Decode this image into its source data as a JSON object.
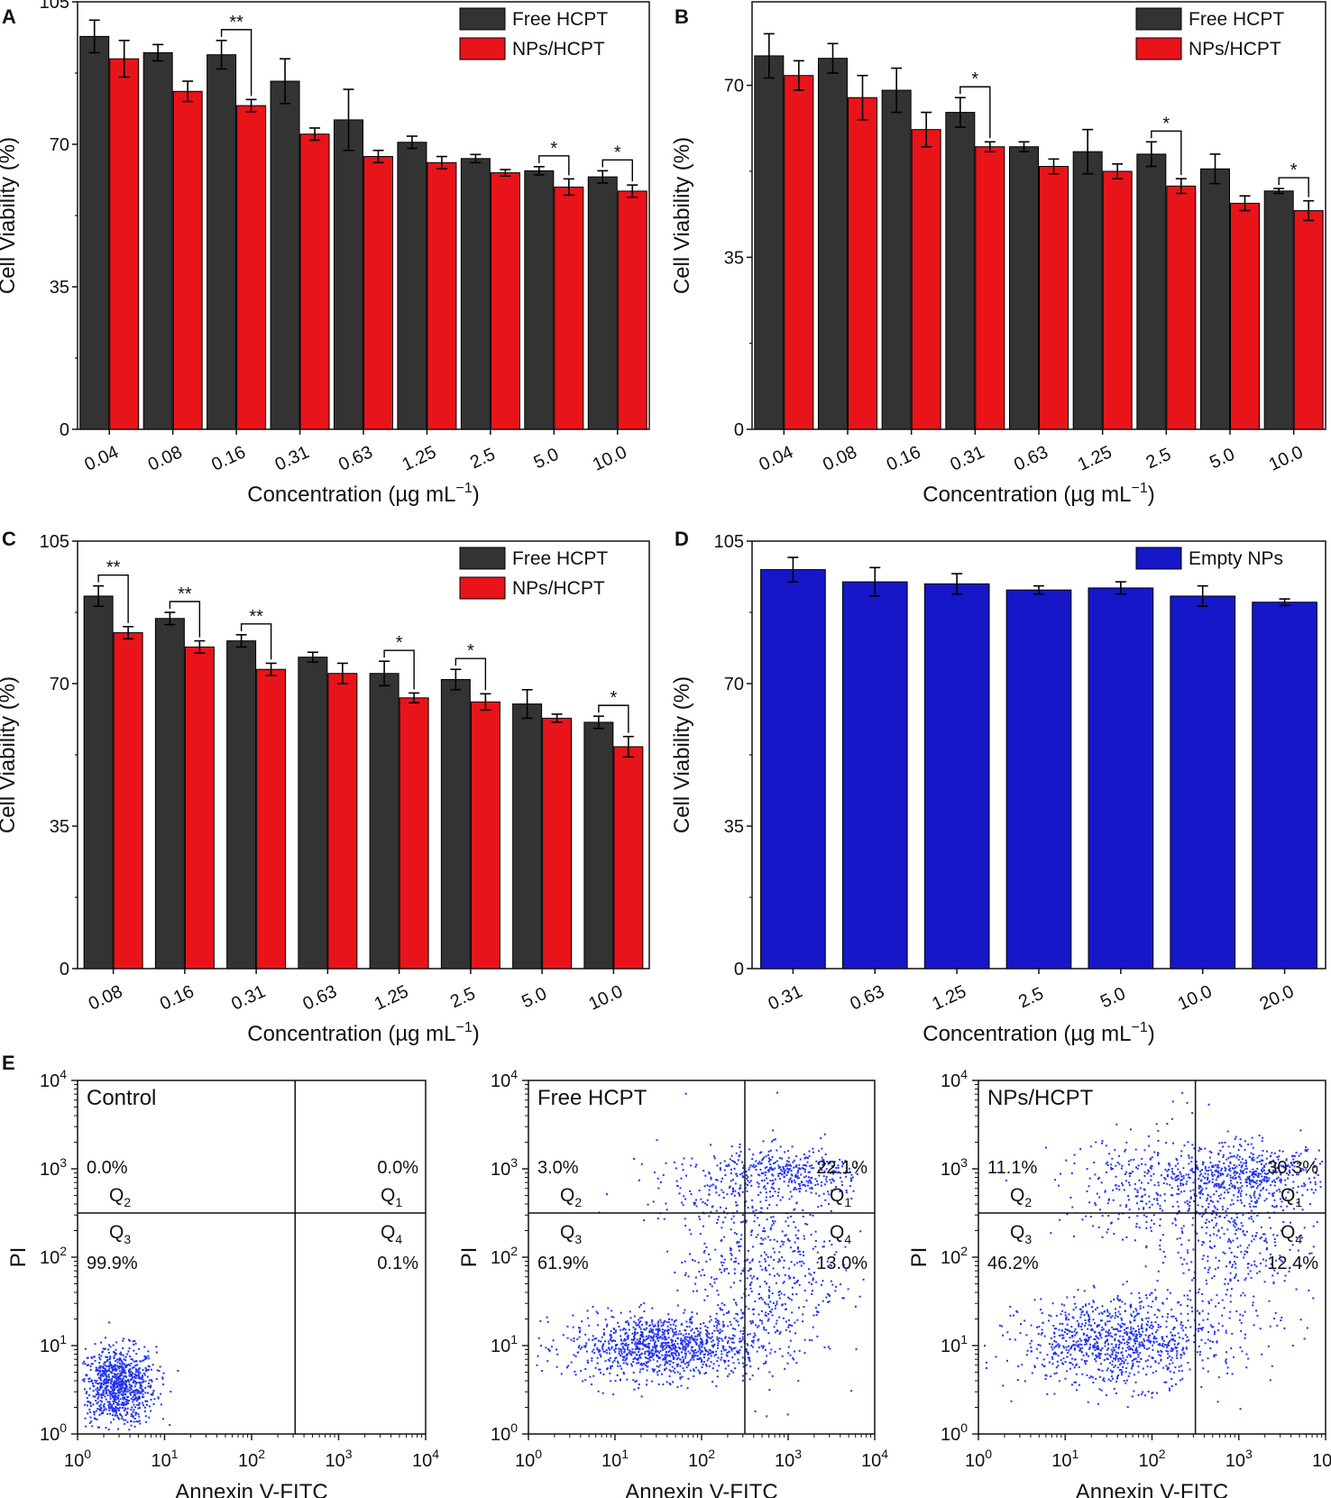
{
  "colors": {
    "free": "#333333",
    "nps": "#e8141a",
    "empty": "#1517c8",
    "dot": "#2233ee",
    "axis": "#111111"
  },
  "chart_data": [
    {
      "panel": "A",
      "type": "bar",
      "ylim": [
        0,
        105
      ],
      "yticks": [
        "0",
        "35",
        "70",
        "105"
      ],
      "ylabel": "Cell Viability (%)",
      "xlabel_main": "Concentration (µg mL",
      "xlabel_sup": "−1",
      "xlabel_end": ")",
      "categories": [
        "0.04",
        "0.08",
        "0.16",
        "0.31",
        "0.63",
        "1.25",
        "2.5",
        "5.0",
        "10.0"
      ],
      "series": [
        {
          "name": "Free HCPT",
          "color_key": "free",
          "values": [
            96.5,
            92.5,
            92.0,
            85.5,
            76.0,
            70.5,
            66.5,
            63.5,
            62.0
          ],
          "errors": [
            4.0,
            2.0,
            3.5,
            5.5,
            7.5,
            1.5,
            1.0,
            1.0,
            1.5
          ]
        },
        {
          "name": "NPs/HCPT",
          "color_key": "nps",
          "values": [
            91.0,
            83.0,
            79.5,
            72.5,
            67.0,
            65.5,
            63.0,
            59.5,
            58.5
          ],
          "errors": [
            4.5,
            2.5,
            1.5,
            1.5,
            1.5,
            1.5,
            0.8,
            2.0,
            1.5
          ]
        }
      ],
      "sig": [
        {
          "index": 2,
          "label": "**"
        },
        {
          "index": 7,
          "label": "*"
        },
        {
          "index": 8,
          "label": "*"
        }
      ]
    },
    {
      "panel": "B",
      "type": "bar",
      "ylim": [
        0,
        87
      ],
      "yticks": [
        "0",
        "35",
        "70"
      ],
      "ylabel": "Cell Viability (%)",
      "xlabel_main": "Concentration (µg mL",
      "xlabel_sup": "−1",
      "xlabel_end": ")",
      "categories": [
        "0.04",
        "0.08",
        "0.16",
        "0.31",
        "0.63",
        "1.25",
        "2.5",
        "5.0",
        "10.0"
      ],
      "series": [
        {
          "name": "Free HCPT",
          "color_key": "free",
          "values": [
            76.0,
            75.5,
            69.0,
            64.5,
            57.5,
            56.5,
            56.0,
            53.0,
            48.5
          ],
          "errors": [
            4.5,
            3.0,
            4.5,
            3.0,
            1.0,
            4.5,
            2.5,
            3.0,
            0.5
          ]
        },
        {
          "name": "NPs/HCPT",
          "color_key": "nps",
          "values": [
            72.0,
            67.5,
            61.0,
            57.5,
            53.5,
            52.5,
            49.5,
            46.0,
            44.5
          ],
          "errors": [
            3.0,
            4.5,
            3.5,
            1.0,
            1.5,
            1.5,
            1.5,
            1.5,
            2.0
          ]
        }
      ],
      "sig": [
        {
          "index": 3,
          "label": "*"
        },
        {
          "index": 6,
          "label": "*"
        },
        {
          "index": 8,
          "label": "*"
        }
      ]
    },
    {
      "panel": "C",
      "type": "bar",
      "ylim": [
        0,
        105
      ],
      "yticks": [
        "0",
        "35",
        "70",
        "105"
      ],
      "ylabel": "Cell Viability (%)",
      "xlabel_main": "Concentration (µg mL",
      "xlabel_sup": "−1",
      "xlabel_end": ")",
      "categories": [
        "0.08",
        "0.16",
        "0.31",
        "0.63",
        "1.25",
        "2.5",
        "5.0",
        "10.0"
      ],
      "series": [
        {
          "name": "Free HCPT",
          "color_key": "free",
          "values": [
            91.5,
            86.0,
            80.5,
            76.5,
            72.5,
            71.0,
            65.0,
            60.5
          ],
          "errors": [
            2.5,
            1.5,
            1.5,
            1.2,
            3.0,
            2.5,
            3.5,
            1.5
          ]
        },
        {
          "name": "NPs/HCPT",
          "color_key": "nps",
          "values": [
            82.5,
            79.0,
            73.5,
            72.5,
            66.5,
            65.5,
            61.5,
            54.5
          ],
          "errors": [
            1.5,
            1.5,
            1.5,
            2.5,
            1.2,
            2.0,
            1.0,
            2.5
          ]
        }
      ],
      "sig": [
        {
          "index": 0,
          "label": "**"
        },
        {
          "index": 1,
          "label": "**"
        },
        {
          "index": 2,
          "label": "**"
        },
        {
          "index": 4,
          "label": "*"
        },
        {
          "index": 5,
          "label": "*"
        },
        {
          "index": 7,
          "label": "*"
        }
      ]
    },
    {
      "panel": "D",
      "type": "bar",
      "ylim": [
        0,
        105
      ],
      "yticks": [
        "0",
        "35",
        "70",
        "105"
      ],
      "ylabel": "Cell Viability (%)",
      "xlabel_main": "Concentration (µg mL",
      "xlabel_sup": "−1",
      "xlabel_end": ")",
      "categories": [
        "0.31",
        "0.63",
        "1.25",
        "2.5",
        "5.0",
        "10.0",
        "20.0"
      ],
      "series": [
        {
          "name": "Empty NPs",
          "color_key": "empty",
          "values": [
            98.0,
            95.0,
            94.5,
            93.0,
            93.5,
            91.5,
            90.0
          ],
          "errors": [
            3.0,
            3.5,
            2.5,
            1.0,
            1.5,
            2.5,
            0.8
          ]
        }
      ],
      "sig": []
    },
    {
      "panel": "E",
      "type": "scatter",
      "xlabel": "Annexin V-FITC",
      "ylabel": "PI",
      "scale": "log10",
      "xrange_exp": [
        0,
        4
      ],
      "yrange_exp": [
        0,
        4
      ],
      "gate_x_exp": 2.5,
      "gate_y_exp": 2.5,
      "tick_base": "10",
      "tick_exps": [
        "0",
        "1",
        "2",
        "3",
        "4"
      ],
      "plots": [
        {
          "title": "Control",
          "Q1": "0.0%",
          "Q2": "0.0%",
          "Q3": "99.9%",
          "Q4": "0.1%"
        },
        {
          "title": "Free HCPT",
          "Q1": "22.1%",
          "Q2": "3.0%",
          "Q3": "61.9%",
          "Q4": "13.0%"
        },
        {
          "title": "NPs/HCPT",
          "Q1": "30.3%",
          "Q2": "11.1%",
          "Q3": "46.2%",
          "Q4": "12.4%"
        }
      ]
    }
  ]
}
